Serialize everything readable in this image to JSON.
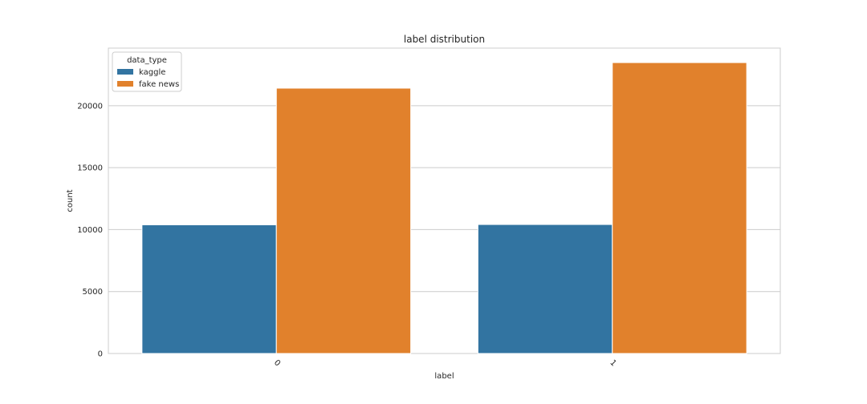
{
  "chart_data": {
    "type": "bar",
    "title": "label distribution",
    "xlabel": "label",
    "ylabel": "count",
    "categories": [
      "0",
      "1"
    ],
    "series": [
      {
        "name": "kaggle",
        "values": [
          10387,
          10413
        ],
        "color": "#3274a1"
      },
      {
        "name": "fake news",
        "values": [
          21417,
          23481
        ],
        "color": "#e1812c"
      }
    ],
    "ylim": [
      0,
      24650
    ],
    "yticks": [
      0,
      5000,
      10000,
      15000,
      20000
    ],
    "yticklabels": [
      "0",
      "5000",
      "10000",
      "15000",
      "20000"
    ],
    "grid": "horizontal",
    "legend": {
      "title": "data_type",
      "position": "top-left"
    },
    "xtick_rotation": 45
  }
}
